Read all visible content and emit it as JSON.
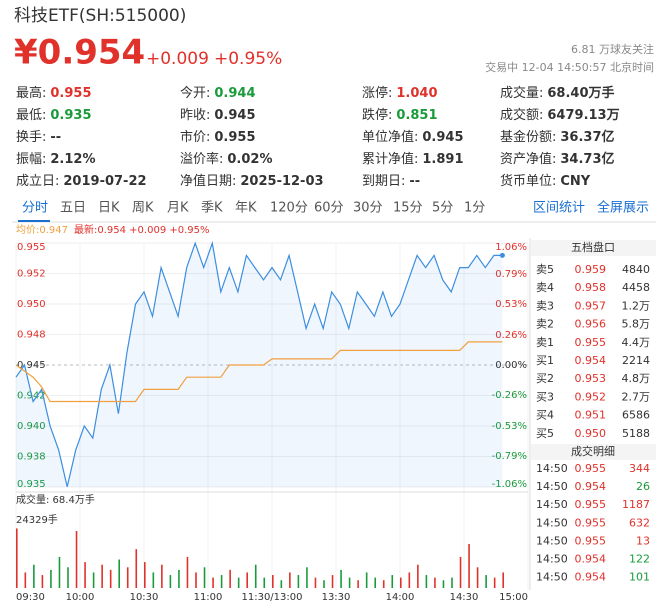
{
  "header": {
    "title": "科技ETF(SH:515000)",
    "price": "¥0.954",
    "change": "+0.009",
    "pct": "+0.95%",
    "followers": "6.81 万球友关注",
    "status": "交易中 12-04 14:50:57 北京时间"
  },
  "stats": [
    [
      {
        "label": "最高:",
        "value": "0.955",
        "color": "#e0312b"
      },
      {
        "label": "今开:",
        "value": "0.944",
        "color": "#1a9b3b"
      },
      {
        "label": "涨停:",
        "value": "1.040",
        "color": "#e0312b"
      },
      {
        "label": "成交量:",
        "value": "68.40万手"
      }
    ],
    [
      {
        "label": "最低:",
        "value": "0.935",
        "color": "#1a9b3b"
      },
      {
        "label": "昨收:",
        "value": "0.945"
      },
      {
        "label": "跌停:",
        "value": "0.851",
        "color": "#1a9b3b"
      },
      {
        "label": "成交额:",
        "value": "6479.13万"
      }
    ],
    [
      {
        "label": "换手:",
        "value": "--"
      },
      {
        "label": "市价:",
        "value": "0.955"
      },
      {
        "label": "单位净值:",
        "value": "0.945"
      },
      {
        "label": "基金份额:",
        "value": "36.37亿"
      }
    ],
    [
      {
        "label": "振幅:",
        "value": "2.12%"
      },
      {
        "label": "溢价率:",
        "value": "0.02%"
      },
      {
        "label": "累计净值:",
        "value": "1.891"
      },
      {
        "label": "资产净值:",
        "value": "34.73亿"
      }
    ],
    [
      {
        "label": "成立日:",
        "value": "2019-07-22"
      },
      {
        "label": "净值日期:",
        "value": "2025-12-03"
      },
      {
        "label": "到期日:",
        "value": "--"
      },
      {
        "label": "货币单位:",
        "value": "CNY"
      }
    ]
  ],
  "tabs": [
    "分时",
    "五日",
    "日K",
    "周K",
    "月K",
    "季K",
    "年K",
    "120分",
    "60分",
    "30分",
    "15分",
    "5分",
    "1分"
  ],
  "tools": [
    "区间统计",
    "全屏展示"
  ],
  "chart_data": [
    {
      "type": "line",
      "legend_avg": "均价:0.947",
      "legend_latest": "最新:0.954 +0.009 +0.95%",
      "x": [
        0,
        4,
        8,
        12,
        16,
        20,
        24,
        28,
        32,
        36,
        40,
        44,
        48,
        52,
        56,
        60,
        64,
        68,
        72,
        76,
        80,
        84,
        88,
        92,
        96,
        100,
        104,
        108,
        112,
        116,
        120,
        124,
        128,
        132,
        136,
        140,
        144,
        148,
        152,
        156,
        160,
        164,
        168,
        172,
        176,
        180,
        184,
        188,
        192,
        196,
        200,
        204,
        208,
        212,
        216,
        220,
        224,
        228
      ],
      "series": [
        {
          "name": "最新",
          "color": "#3c8ee0",
          "values": [
            0.944,
            0.945,
            0.942,
            0.943,
            0.94,
            0.938,
            0.935,
            0.938,
            0.94,
            0.939,
            0.943,
            0.945,
            0.941,
            0.946,
            0.95,
            0.951,
            0.949,
            0.953,
            0.951,
            0.949,
            0.953,
            0.955,
            0.953,
            0.955,
            0.951,
            0.953,
            0.951,
            0.954,
            0.953,
            0.952,
            0.953,
            0.952,
            0.954,
            0.951,
            0.948,
            0.95,
            0.948,
            0.951,
            0.95,
            0.948,
            0.951,
            0.95,
            0.949,
            0.951,
            0.949,
            0.95,
            0.952,
            0.954,
            0.953,
            0.954,
            0.952,
            0.951,
            0.953,
            0.953,
            0.954,
            0.953,
            0.954,
            0.954
          ]
        },
        {
          "name": "均价",
          "color": "#f0a040",
          "values": [
            0.945,
            0.9445,
            0.944,
            0.9432,
            0.942,
            0.942,
            0.942,
            0.942,
            0.942,
            0.942,
            0.942,
            0.942,
            0.942,
            0.942,
            0.942,
            0.943,
            0.943,
            0.943,
            0.943,
            0.943,
            0.944,
            0.944,
            0.944,
            0.944,
            0.944,
            0.945,
            0.945,
            0.945,
            0.945,
            0.945,
            0.9455,
            0.9455,
            0.9455,
            0.9455,
            0.9455,
            0.9455,
            0.9455,
            0.9455,
            0.9462,
            0.9462,
            0.9462,
            0.9462,
            0.9462,
            0.9462,
            0.9462,
            0.9462,
            0.9462,
            0.9462,
            0.9462,
            0.9462,
            0.9462,
            0.9462,
            0.9462,
            0.9469,
            0.9469,
            0.9469,
            0.9469,
            0.9469
          ]
        }
      ],
      "xlim": [
        0,
        240
      ],
      "xticks": [
        {
          "value": 0,
          "label": "09:30"
        },
        {
          "value": 30,
          "label": "10:00"
        },
        {
          "value": 60,
          "label": "10:30"
        },
        {
          "value": 90,
          "label": "11:00"
        },
        {
          "value": 120,
          "label": "11:30/13:00"
        },
        {
          "value": 150,
          "label": "13:30"
        },
        {
          "value": 180,
          "label": "14:00"
        },
        {
          "value": 210,
          "label": "14:30"
        },
        {
          "value": 240,
          "label": "15:00"
        }
      ],
      "ylim": [
        0.93498,
        0.95502
      ],
      "yticks": [
        {
          "value": 0.95502,
          "label": "0.955"
        },
        {
          "value": 0.95251,
          "label": "0.952"
        },
        {
          "value": 0.95001,
          "label": "0.950"
        },
        {
          "value": 0.9475,
          "label": "0.948"
        },
        {
          "value": 0.945,
          "label": "0.945"
        },
        {
          "value": 0.9425,
          "label": "0.942"
        },
        {
          "value": 0.93999,
          "label": "0.940"
        },
        {
          "value": 0.93749,
          "label": "0.938"
        },
        {
          "value": 0.93498,
          "label": "0.935"
        }
      ],
      "y2lim": [
        -1.06,
        1.06
      ],
      "y2ticks": [
        {
          "value": 1.06,
          "label": "1.06%"
        },
        {
          "value": 0.79,
          "label": "0.79%"
        },
        {
          "value": 0.53,
          "label": "0.53%"
        },
        {
          "value": 0.26,
          "label": "0.26%"
        },
        {
          "value": 0,
          "label": "0.00%"
        },
        {
          "value": -0.26,
          "label": "-0.26%"
        },
        {
          "value": -0.53,
          "label": "-0.53%"
        },
        {
          "value": -0.79,
          "label": "-0.79%"
        },
        {
          "value": -1.06,
          "label": "-1.06%"
        }
      ]
    },
    {
      "type": "bar",
      "legend": "成交量: 68.4万手",
      "x": [
        0,
        4,
        8,
        12,
        16,
        20,
        24,
        28,
        32,
        36,
        40,
        44,
        48,
        52,
        56,
        60,
        64,
        68,
        72,
        76,
        80,
        84,
        88,
        92,
        96,
        100,
        104,
        108,
        112,
        116,
        120,
        124,
        128,
        132,
        136,
        140,
        144,
        148,
        152,
        156,
        160,
        164,
        168,
        172,
        176,
        180,
        184,
        188,
        192,
        196,
        200,
        204,
        208,
        212,
        216,
        220,
        224,
        228
      ],
      "values": [
        23000,
        6000,
        9000,
        5000,
        7000,
        12000,
        8000,
        22000,
        10000,
        6000,
        9000,
        7000,
        11000,
        8000,
        15000,
        10000,
        6000,
        9000,
        5000,
        7000,
        12000,
        6000,
        8000,
        4000,
        5000,
        7000,
        4000,
        6000,
        9000,
        4000,
        5000,
        3000,
        6000,
        5000,
        8000,
        4000,
        3000,
        5000,
        7000,
        4000,
        3000,
        6000,
        4000,
        3000,
        5000,
        4000,
        6000,
        9000,
        5000,
        4000,
        3000,
        4000,
        12000,
        17000,
        8000,
        5000,
        4000,
        6000
      ],
      "up_color": "#e0312b",
      "down_color": "#1a9b3b",
      "xlim": [
        0,
        240
      ],
      "ylim": [
        0,
        24329
      ],
      "yticks": [
        {
          "value": 24329,
          "label": "24329手"
        }
      ]
    }
  ],
  "order_book": {
    "title": "五档盘口",
    "rows": [
      [
        "卖5",
        "0.959",
        "4840"
      ],
      [
        "卖4",
        "0.958",
        "4458"
      ],
      [
        "卖3",
        "0.957",
        "1.2万"
      ],
      [
        "卖2",
        "0.956",
        "5.8万"
      ],
      [
        "卖1",
        "0.955",
        "4.4万"
      ],
      [
        "买1",
        "0.954",
        "2214"
      ],
      [
        "买2",
        "0.953",
        "4.8万"
      ],
      [
        "买3",
        "0.952",
        "2.7万"
      ],
      [
        "买4",
        "0.951",
        "6586"
      ],
      [
        "买5",
        "0.950",
        "5188"
      ]
    ]
  },
  "trades": {
    "title": "成交明细",
    "rows": [
      {
        "time": "14:50",
        "price": "0.955",
        "volume": "344",
        "color": "#e0312b"
      },
      {
        "time": "14:50",
        "price": "0.954",
        "volume": "26",
        "color": "#1a9b3b"
      },
      {
        "time": "14:50",
        "price": "0.955",
        "volume": "1187",
        "color": "#e0312b"
      },
      {
        "time": "14:50",
        "price": "0.955",
        "volume": "632",
        "color": "#e0312b"
      },
      {
        "time": "14:50",
        "price": "0.955",
        "volume": "13",
        "color": "#e0312b"
      },
      {
        "time": "14:50",
        "price": "0.954",
        "volume": "122",
        "color": "#1a9b3b"
      },
      {
        "time": "14:50",
        "price": "0.954",
        "volume": "101",
        "color": "#1a9b3b"
      }
    ]
  }
}
